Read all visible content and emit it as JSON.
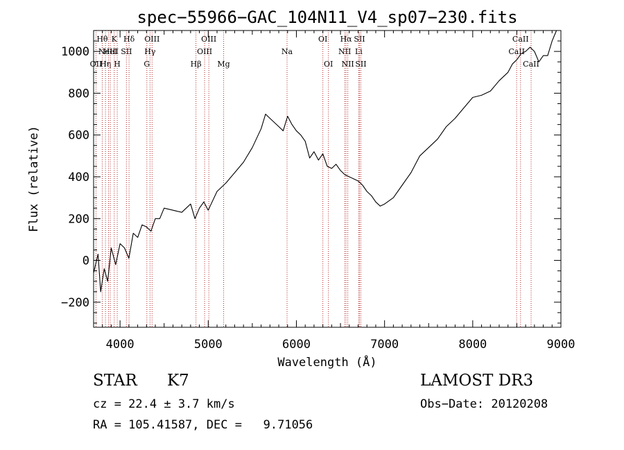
{
  "chart_data": {
    "type": "line",
    "title": "spec−55966−GAC_104N11_V4_sp07−230.fits",
    "xlabel": "Wavelength (Å)",
    "ylabel": "Flux (relative)",
    "xlim": [
      3700,
      9000
    ],
    "ylim": [
      -320,
      1100
    ],
    "x_ticks": [
      4000,
      5000,
      6000,
      7000,
      8000,
      9000
    ],
    "y_ticks": [
      -200,
      0,
      200,
      400,
      600,
      800,
      1000
    ],
    "y_tick_labels": [
      "−200",
      "0",
      "200",
      "400",
      "600",
      "800",
      "1000"
    ],
    "line_color": "#000000",
    "marker_color": "#b22222",
    "series": [
      {
        "name": "spectrum",
        "x": [
          3700,
          3750,
          3780,
          3820,
          3860,
          3900,
          3950,
          4000,
          4050,
          4100,
          4150,
          4200,
          4250,
          4300,
          4350,
          4400,
          4450,
          4500,
          4600,
          4700,
          4800,
          4850,
          4900,
          4950,
          5000,
          5100,
          5200,
          5300,
          5400,
          5500,
          5600,
          5650,
          5700,
          5750,
          5800,
          5850,
          5900,
          5950,
          6000,
          6050,
          6100,
          6150,
          6200,
          6250,
          6300,
          6350,
          6400,
          6450,
          6500,
          6550,
          6600,
          6650,
          6700,
          6750,
          6800,
          6850,
          6900,
          6950,
          7000,
          7100,
          7200,
          7300,
          7400,
          7500,
          7600,
          7700,
          7800,
          7900,
          8000,
          8100,
          8200,
          8300,
          8400,
          8450,
          8500,
          8550,
          8600,
          8650,
          8700,
          8750,
          8800,
          8850,
          8900,
          8950,
          9000
        ],
        "y": [
          -60,
          30,
          -150,
          -40,
          -100,
          60,
          -20,
          80,
          60,
          10,
          130,
          110,
          170,
          160,
          140,
          200,
          200,
          250,
          240,
          230,
          270,
          200,
          250,
          280,
          240,
          330,
          370,
          420,
          470,
          540,
          630,
          700,
          680,
          660,
          640,
          620,
          690,
          650,
          620,
          600,
          570,
          490,
          520,
          480,
          510,
          450,
          440,
          460,
          430,
          410,
          400,
          390,
          380,
          360,
          330,
          310,
          280,
          260,
          270,
          300,
          360,
          420,
          500,
          540,
          580,
          640,
          680,
          730,
          780,
          790,
          810,
          860,
          900,
          940,
          960,
          990,
          1000,
          1020,
          1000,
          950,
          980,
          980,
          1050,
          1100,
          1120
        ]
      }
    ],
    "line_markers": [
      {
        "x": 3727,
        "label": "OII",
        "row": 2
      },
      {
        "x": 3798,
        "label": "Hθ",
        "row": 0
      },
      {
        "x": 3835,
        "label": "Hη",
        "row": 2
      },
      {
        "x": 3869,
        "label": "NeIII",
        "row": 1
      },
      {
        "x": 3889,
        "label": "HeI",
        "row": 1
      },
      {
        "x": 3934,
        "label": "K",
        "row": 0
      },
      {
        "x": 3968,
        "label": "H",
        "row": 2
      },
      {
        "x": 4072,
        "label": "SII",
        "row": 1
      },
      {
        "x": 4102,
        "label": "Hδ",
        "row": 0
      },
      {
        "x": 4304,
        "label": "G",
        "row": 2
      },
      {
        "x": 4340,
        "label": "Hγ",
        "row": 1
      },
      {
        "x": 4363,
        "label": "OIII",
        "row": 0
      },
      {
        "x": 4861,
        "label": "Hβ",
        "row": 2
      },
      {
        "x": 4959,
        "label": "OIII",
        "row": 1
      },
      {
        "x": 5007,
        "label": "OIII",
        "row": 0
      },
      {
        "x": 5175,
        "label": "Mg",
        "row": 2
      },
      {
        "x": 5894,
        "label": "Na",
        "row": 1
      },
      {
        "x": 6300,
        "label": "OI",
        "row": 0
      },
      {
        "x": 6363,
        "label": "OI",
        "row": 2
      },
      {
        "x": 6548,
        "label": "NII",
        "row": 1
      },
      {
        "x": 6563,
        "label": "Hα",
        "row": 0
      },
      {
        "x": 6583,
        "label": "NII",
        "row": 2
      },
      {
        "x": 6707,
        "label": "Li",
        "row": 1
      },
      {
        "x": 6716,
        "label": "SII",
        "row": 0
      },
      {
        "x": 6731,
        "label": "SII",
        "row": 2
      },
      {
        "x": 8498,
        "label": "CaII",
        "row": 1
      },
      {
        "x": 8542,
        "label": "CaII",
        "row": 0
      },
      {
        "x": 8662,
        "label": "CaII",
        "row": 2
      }
    ]
  },
  "info": {
    "class": "STAR",
    "subclass": "K7",
    "survey": "LAMOST DR3",
    "redshift": "cz = 22.4 ± 3.7 km/s",
    "obs_date": "Obs−Date: 20120208",
    "coords": "RA = 105.41587, DEC =   9.71056"
  }
}
